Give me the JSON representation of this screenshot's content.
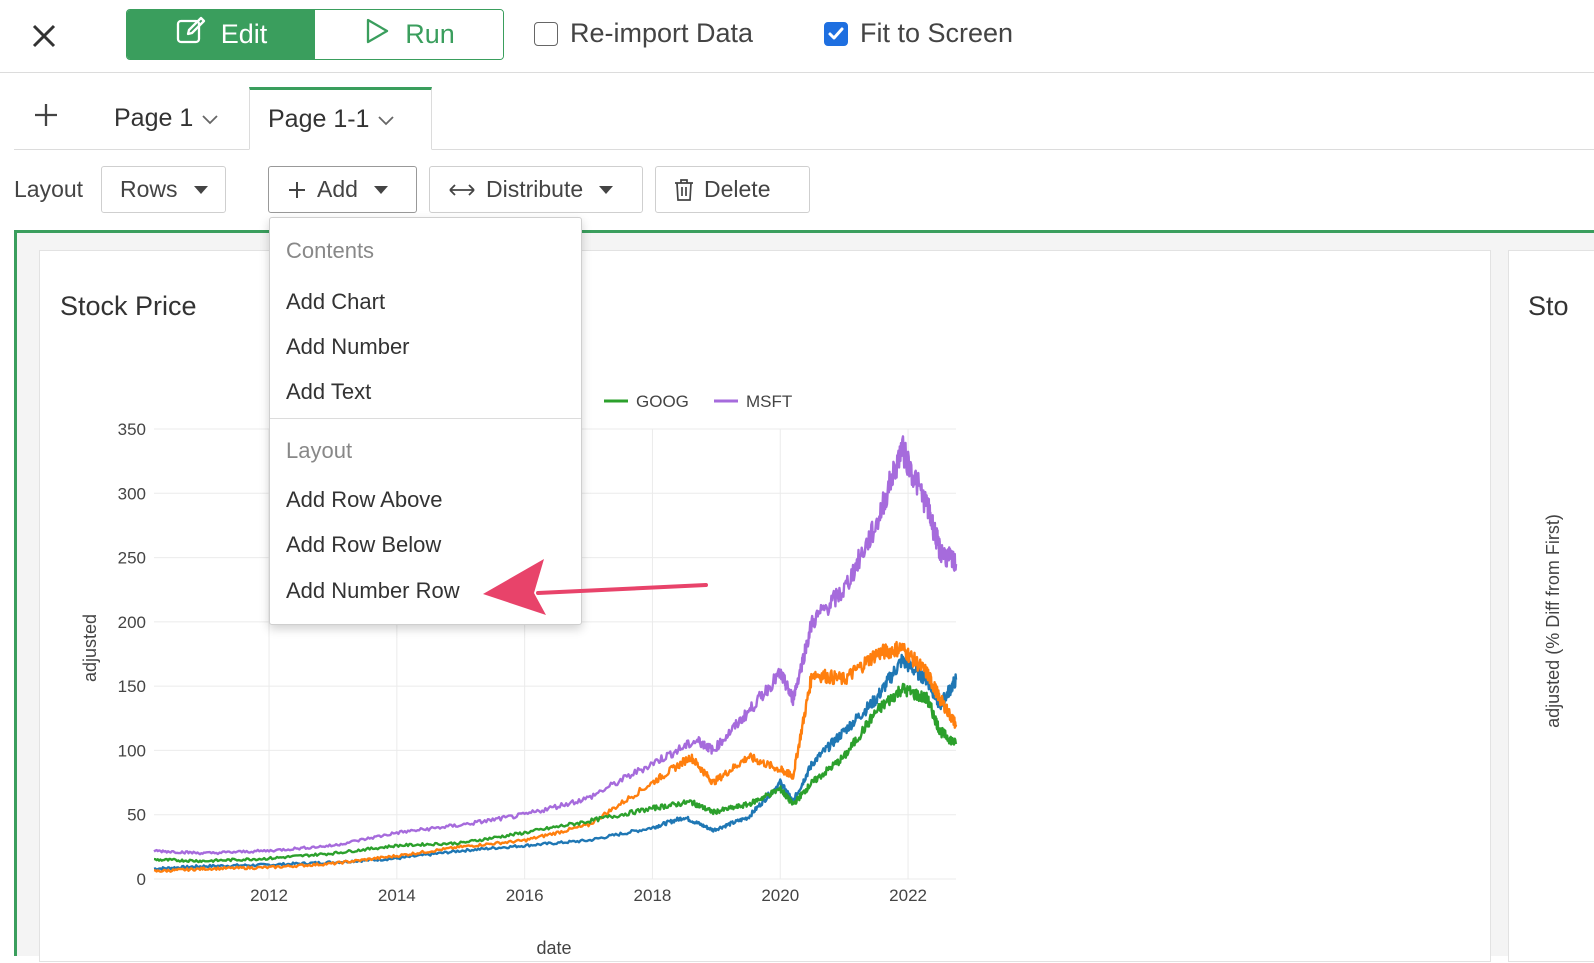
{
  "topbar": {
    "edit_label": "Edit",
    "run_label": "Run",
    "reimport_label": "Re-import Data",
    "reimport_checked": false,
    "fit_label": "Fit to Screen",
    "fit_checked": true,
    "accent_color": "#3a9e5d",
    "check_color": "#1e6fe0"
  },
  "tabs": [
    {
      "label": "Page 1",
      "active": false
    },
    {
      "label": "Page 1-1",
      "active": true
    }
  ],
  "toolbar": {
    "layout_label": "Layout",
    "layout_value": "Rows",
    "add_label": "Add",
    "distribute_label": "Distribute",
    "delete_label": "Delete"
  },
  "dropdown": {
    "contents_header": "Contents",
    "items_contents": [
      "Add Chart",
      "Add Number",
      "Add Text"
    ],
    "layout_header": "Layout",
    "items_layout": [
      "Add Row Above",
      "Add Row Below",
      "Add Number Row"
    ],
    "highlighted": "Add Number Row",
    "arrow_color": "#e8436a"
  },
  "panels": {
    "left_title": "Stock Price",
    "right_title": "Sto",
    "right_ylabel": "adjusted (% Diff from First)"
  },
  "chart_data": {
    "type": "line",
    "xlabel": "date",
    "ylabel": "adjusted",
    "ylim": [
      0,
      350
    ],
    "yticks": [
      0,
      50,
      100,
      150,
      200,
      250,
      300,
      350
    ],
    "xticks": [
      "2012",
      "2014",
      "2016",
      "2018",
      "2020",
      "2022"
    ],
    "xlim": [
      2010.2,
      2022.75
    ],
    "grid": true,
    "legend_position": "top",
    "legend_visible": [
      "GOOG",
      "MSFT"
    ],
    "series": [
      {
        "color": "#1f77b4",
        "x": [
          2010.2,
          2011,
          2012,
          2013,
          2014,
          2015,
          2016,
          2017,
          2018,
          2018.5,
          2018.95,
          2019.5,
          2020,
          2020.2,
          2020.5,
          2021,
          2021.5,
          2021.9,
          2022.3,
          2022.5,
          2022.75
        ],
        "y": [
          8,
          10,
          11,
          13,
          16,
          22,
          26,
          30,
          40,
          48,
          38,
          48,
          75,
          60,
          90,
          115,
          140,
          170,
          155,
          135,
          155
        ]
      },
      {
        "color": "#ff7f0e",
        "x": [
          2010.2,
          2011,
          2012,
          2013,
          2014,
          2015,
          2016,
          2017,
          2018,
          2018.6,
          2018.95,
          2019.5,
          2020,
          2020.2,
          2020.5,
          2021,
          2021.5,
          2021.9,
          2022.3,
          2022.5,
          2022.75
        ],
        "y": [
          6,
          8,
          9,
          12,
          18,
          25,
          30,
          42,
          75,
          95,
          75,
          95,
          85,
          80,
          160,
          155,
          175,
          180,
          160,
          140,
          120
        ]
      },
      {
        "name": "GOOG",
        "color": "#2ca02c",
        "x": [
          2010.2,
          2011,
          2012,
          2013,
          2014,
          2015,
          2016,
          2017,
          2018,
          2018.6,
          2018.95,
          2019.5,
          2020,
          2020.2,
          2020.5,
          2021,
          2021.5,
          2021.9,
          2022.3,
          2022.5,
          2022.75
        ],
        "y": [
          15,
          14,
          16,
          20,
          26,
          28,
          36,
          45,
          55,
          60,
          52,
          58,
          70,
          58,
          75,
          95,
          130,
          148,
          140,
          115,
          105
        ]
      },
      {
        "name": "MSFT",
        "color": "#a66bdc",
        "x": [
          2010.2,
          2011,
          2012,
          2013,
          2014,
          2015,
          2016,
          2017,
          2018,
          2018.7,
          2018.95,
          2019.5,
          2020,
          2020.2,
          2020.5,
          2021,
          2021.5,
          2021.9,
          2022.3,
          2022.5,
          2022.75
        ],
        "y": [
          22,
          20,
          22,
          26,
          36,
          42,
          50,
          63,
          90,
          108,
          100,
          130,
          160,
          140,
          200,
          225,
          275,
          335,
          290,
          255,
          245
        ]
      }
    ]
  }
}
